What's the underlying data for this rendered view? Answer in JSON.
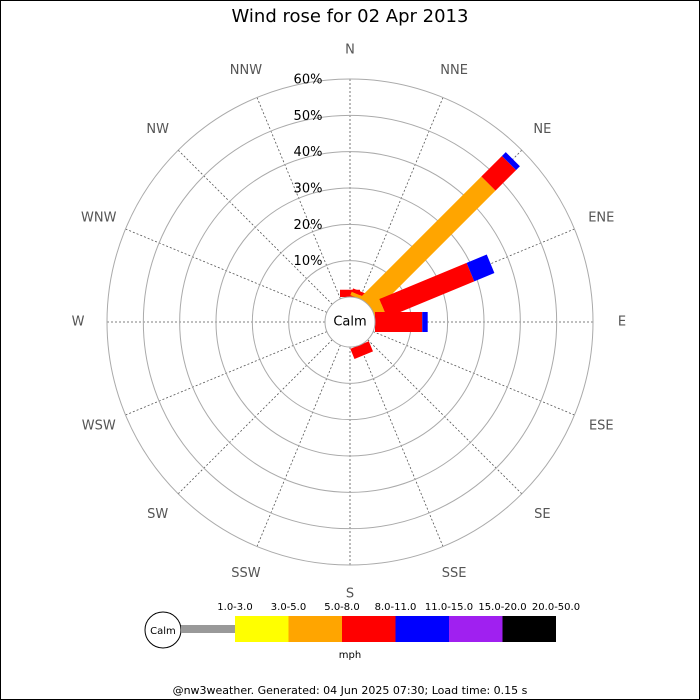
{
  "chart_data": {
    "type": "windrose",
    "title": "Wind rose for 02 Apr 2013",
    "directions": [
      "N",
      "NNE",
      "NE",
      "ENE",
      "E",
      "ESE",
      "SE",
      "SSE",
      "S",
      "SSW",
      "SW",
      "WSW",
      "W",
      "WNW",
      "NW",
      "NNW"
    ],
    "calm_label": "Calm",
    "rlim": [
      0,
      60
    ],
    "rticks": [
      {
        "value": 10,
        "label": "10%"
      },
      {
        "value": 20,
        "label": "20%"
      },
      {
        "value": 30,
        "label": "30%"
      },
      {
        "value": 40,
        "label": "40%"
      },
      {
        "value": 50,
        "label": "50%"
      },
      {
        "value": 60,
        "label": "60%"
      }
    ],
    "series": [
      {
        "name": "1.0-3.0",
        "color": "#999999",
        "values": [
          0,
          0,
          0,
          0,
          0,
          0,
          0,
          0,
          0,
          0,
          0,
          0,
          0,
          0,
          0,
          0
        ]
      },
      {
        "name": "3.0-5.0",
        "color": "#ffff00",
        "values": [
          0,
          0,
          0,
          0,
          0,
          0,
          0,
          0,
          0,
          0,
          0,
          0,
          0,
          0,
          0,
          0
        ]
      },
      {
        "name": "5.0-8.0",
        "color": "#ffa500",
        "values": [
          0,
          1,
          47,
          3,
          0,
          0,
          0,
          0,
          0,
          0,
          0,
          0,
          0,
          0,
          0,
          0
        ]
      },
      {
        "name": "8.0-11.0",
        "color": "#ff0000",
        "values": [
          2,
          1,
          8,
          26,
          13,
          0,
          0,
          3,
          0,
          0,
          0,
          0,
          0,
          0,
          0,
          0
        ]
      },
      {
        "name": "11.0-15.0",
        "color": "#0000ff",
        "values": [
          0,
          0,
          1.5,
          6,
          1.5,
          0,
          0,
          0,
          0,
          0,
          0,
          0,
          0,
          0,
          0,
          0
        ]
      },
      {
        "name": "15.0-20.0",
        "color": "#a020f0",
        "values": [
          0,
          0,
          0,
          0,
          0,
          0,
          0,
          0,
          0,
          0,
          0,
          0,
          0,
          0,
          0,
          0
        ]
      },
      {
        "name": "20.0-50.0",
        "color": "#000000",
        "values": [
          0,
          0,
          0,
          0,
          0,
          0,
          0,
          0,
          0,
          0,
          0,
          0,
          0,
          0,
          0,
          0
        ]
      }
    ],
    "unit": "mph",
    "footer": "@nw3weather. Generated: 04 Jun 2025 07:30; Load time: 0.15 s"
  }
}
